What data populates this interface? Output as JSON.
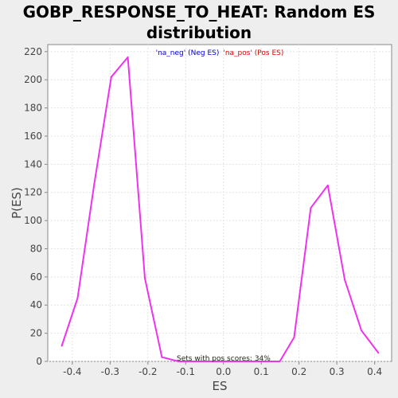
{
  "chart_data": {
    "type": "line",
    "title_lines": [
      "GOBP_RESPONSE_TO_HEAT: Random ES",
      "distribution"
    ],
    "xlabel": "ES",
    "ylabel": "P(ES)",
    "xlim": [
      -0.465,
      0.445
    ],
    "ylim": [
      0,
      225
    ],
    "x_ticks": [
      -0.4,
      -0.3,
      -0.2,
      -0.1,
      0.0,
      0.1,
      0.2,
      0.3,
      0.4
    ],
    "x_tick_labels": [
      "-0.4",
      "-0.3",
      "-0.2",
      "-0.1",
      "0.0",
      "0.1",
      "0.2",
      "0.3",
      "0.4"
    ],
    "y_ticks": [
      0,
      20,
      40,
      60,
      80,
      100,
      120,
      140,
      160,
      180,
      200,
      220
    ],
    "y_tick_labels": [
      "0",
      "20",
      "40",
      "60",
      "80",
      "100",
      "120",
      "140",
      "160",
      "180",
      "200",
      "220"
    ],
    "grid": true,
    "legend": {
      "placement": "top-center",
      "entries": [
        {
          "text": "'na_neg' (Neg ES)",
          "color": "#0000cc"
        },
        {
          "text": "'na_pos' (Pos ES)",
          "color": "#dd0000"
        }
      ]
    },
    "annotation": "Sets with pos scores: 34%",
    "series": [
      {
        "color": "#ee33ee",
        "points": [
          [
            -0.428,
            11
          ],
          [
            -0.386,
            45
          ],
          [
            -0.342,
            126
          ],
          [
            -0.297,
            202
          ],
          [
            -0.253,
            216
          ],
          [
            -0.208,
            59
          ],
          [
            -0.163,
            3
          ],
          [
            -0.119,
            0
          ],
          [
            -0.074,
            0
          ],
          [
            -0.03,
            0
          ],
          [
            0.015,
            0
          ],
          [
            0.06,
            0
          ],
          [
            0.104,
            0
          ],
          [
            0.149,
            0
          ],
          [
            0.187,
            17
          ],
          [
            0.231,
            109
          ],
          [
            0.276,
            125
          ],
          [
            0.321,
            58
          ],
          [
            0.365,
            22
          ],
          [
            0.41,
            6
          ]
        ]
      }
    ]
  },
  "colors": {
    "background": "#eeeeee",
    "plot_background": "#ffffff",
    "grid": "#e4e4e4",
    "axis": "#888888"
  }
}
